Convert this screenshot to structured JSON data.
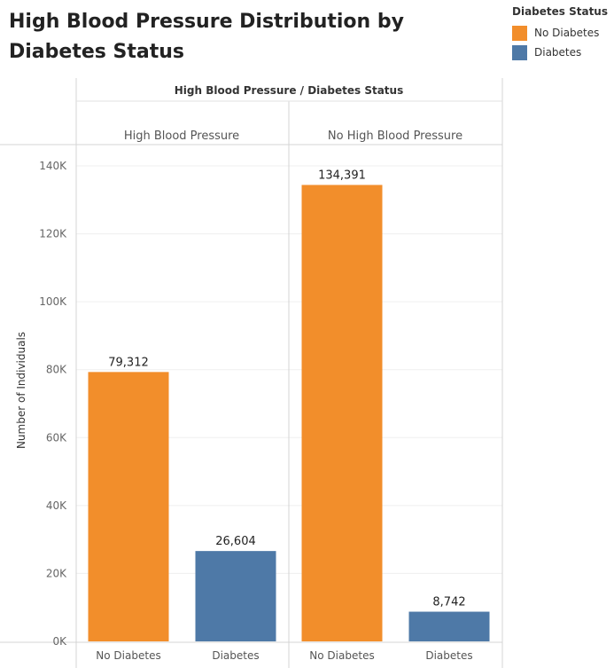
{
  "title": "High Blood Pressure Distribution by Diabetes Status",
  "legend": {
    "title": "Diabetes Status",
    "items": [
      {
        "label": "No Diabetes",
        "color": "#F28E2B"
      },
      {
        "label": "Diabetes",
        "color": "#4E79A7"
      }
    ]
  },
  "header": "High Blood Pressure  /  Diabetes Status",
  "colors": {
    "No Diabetes": "#F28E2B",
    "Diabetes": "#4E79A7"
  },
  "chart_data": {
    "type": "bar",
    "ylabel": "Number of Individuals",
    "ylim": [
      0,
      145000
    ],
    "yticks": [
      0,
      20000,
      40000,
      60000,
      80000,
      100000,
      120000,
      140000
    ],
    "ytick_labels": [
      "0K",
      "20K",
      "40K",
      "60K",
      "80K",
      "100K",
      "120K",
      "140K"
    ],
    "grid": true,
    "legend_position": "top-right",
    "panels": [
      {
        "label": "High Blood Pressure",
        "categories": [
          "No Diabetes",
          "Diabetes"
        ],
        "values": [
          79312,
          26604
        ],
        "value_labels": [
          "79,312",
          "26,604"
        ]
      },
      {
        "label": "No High Blood Pressure",
        "categories": [
          "No Diabetes",
          "Diabetes"
        ],
        "values": [
          134391,
          8742
        ],
        "value_labels": [
          "134,391",
          "8,742"
        ]
      }
    ]
  }
}
